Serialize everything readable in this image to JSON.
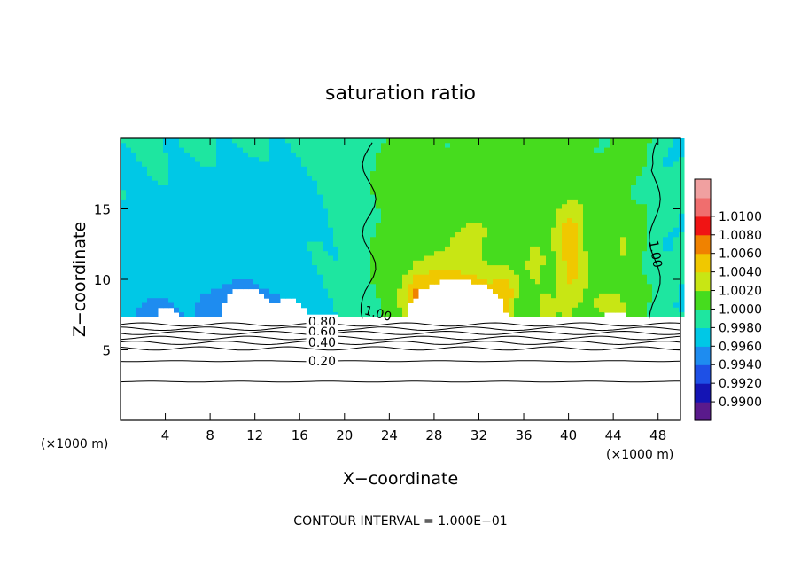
{
  "chart_data": {
    "type": "heatmap",
    "title": "saturation ratio",
    "xlabel": "X−coordinate",
    "ylabel": "Z−coordinate",
    "x_unit_left": "(×1000 m)",
    "x_unit_right": "(×1000 m)",
    "footer": "CONTOUR INTERVAL = 1.000E−01",
    "xlim": [
      0,
      50
    ],
    "ylim": [
      0,
      20
    ],
    "x_ticks": [
      4,
      8,
      12,
      16,
      20,
      24,
      28,
      32,
      36,
      40,
      44,
      48
    ],
    "y_ticks": [
      5,
      10,
      15
    ],
    "colorbar": {
      "min": 0.99,
      "max": 1.01,
      "levels": [
        0.99,
        0.992,
        0.994,
        0.996,
        0.998,
        1.0,
        1.002,
        1.004,
        1.006,
        1.008,
        1.01
      ],
      "labels": [
        "0.9900",
        "0.9920",
        "0.9940",
        "0.9960",
        "0.9980",
        "1.0000",
        "1.0020",
        "1.0040",
        "1.0060",
        "1.0080",
        "1.0100"
      ],
      "colors": [
        "#5a1a8c",
        "#1414b4",
        "#1e50e6",
        "#1e8cf0",
        "#00c8e6",
        "#1ee6a0",
        "#46dc1e",
        "#c8e614",
        "#f0c800",
        "#f08200",
        "#f01414",
        "#f06e6e",
        "#f0a0a0"
      ]
    },
    "contour_labels": [
      "0.80",
      "0.60",
      "0.40",
      "0.20",
      "1.00",
      "1.00"
    ],
    "grid": false,
    "legend": "right"
  }
}
